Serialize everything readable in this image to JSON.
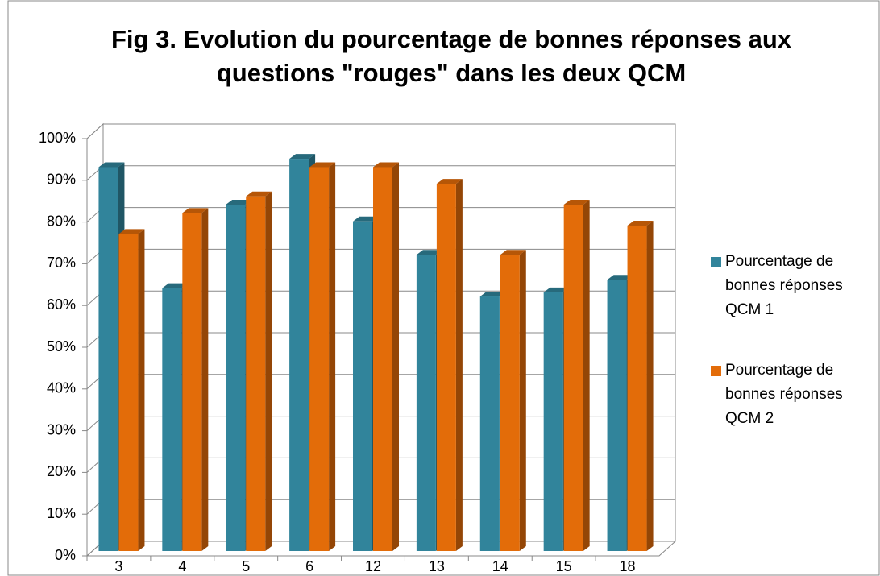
{
  "chart_data": {
    "type": "bar3d",
    "title": "Fig 3. Evolution du pourcentage de bonnes réponses aux questions \"rouges\" dans les deux QCM",
    "categories": [
      "3",
      "4",
      "5",
      "6",
      "12",
      "13",
      "14",
      "15",
      "18"
    ],
    "series": [
      {
        "name": "Pourcentage de bonnes réponses QCM 1",
        "color": "#31849b",
        "values": [
          92,
          63,
          83,
          94,
          79,
          71,
          61,
          62,
          65
        ]
      },
      {
        "name": "Pourcentage de bonnes réponses QCM 2",
        "color": "#e36c09",
        "values": [
          76,
          81,
          85,
          92,
          92,
          88,
          71,
          83,
          78
        ]
      }
    ],
    "ylim": [
      0,
      100
    ],
    "yticks": [
      {
        "value": 0,
        "label": "0%"
      },
      {
        "value": 10,
        "label": "10%"
      },
      {
        "value": 20,
        "label": "20%"
      },
      {
        "value": 30,
        "label": "30%"
      },
      {
        "value": 40,
        "label": "40%"
      },
      {
        "value": 50,
        "label": "50%"
      },
      {
        "value": 60,
        "label": "60%"
      },
      {
        "value": 70,
        "label": "70%"
      },
      {
        "value": 80,
        "label": "80%"
      },
      {
        "value": 90,
        "label": "90%"
      },
      {
        "value": 100,
        "label": "100%"
      }
    ],
    "grid": true,
    "legend": "right"
  }
}
